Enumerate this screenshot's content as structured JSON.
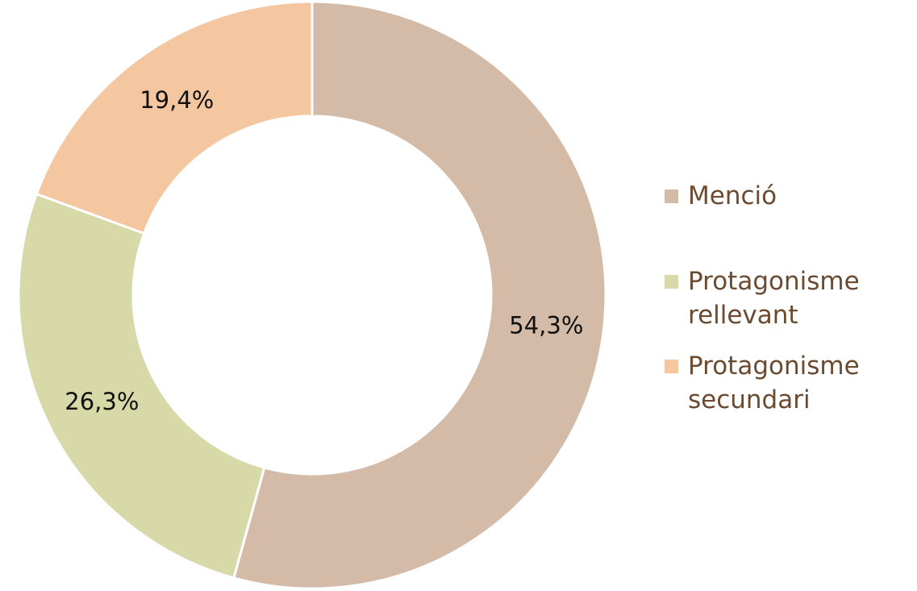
{
  "chart_data": {
    "type": "donut",
    "categories": [
      "Menció",
      "Protagonisme rellevant",
      "Protagonisme secundari"
    ],
    "values": [
      54.3,
      26.3,
      19.4
    ],
    "value_labels": [
      "54,3%",
      "26,3%",
      "19,4%"
    ],
    "colors": [
      "#d3bba8",
      "#d8d9a8",
      "#f5c7a0"
    ],
    "legend": "right"
  }
}
